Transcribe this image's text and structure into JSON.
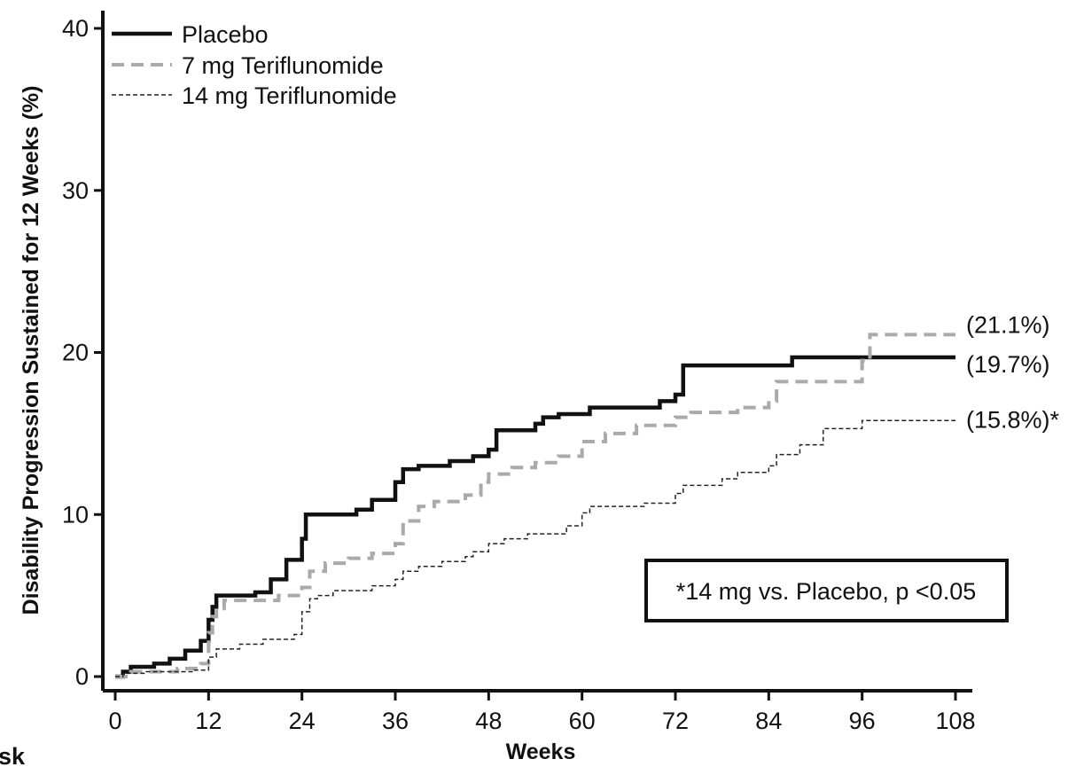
{
  "chart_data": {
    "type": "line",
    "step": true,
    "xlabel": "Weeks",
    "ylabel": "Disability Progression Sustained for 12 Weeks (%)",
    "xlim": [
      0,
      108
    ],
    "ylim": [
      0,
      40
    ],
    "xticks": [
      0,
      12,
      24,
      36,
      48,
      60,
      72,
      84,
      96,
      108
    ],
    "yticks": [
      0,
      10,
      20,
      30,
      40
    ],
    "legend_position": "top-left",
    "series": [
      {
        "name": "Placebo",
        "color": "#111111",
        "style": "solid-thick",
        "end_label": "(19.7%)",
        "points": [
          [
            0,
            0
          ],
          [
            1,
            0.3
          ],
          [
            2,
            0.6
          ],
          [
            5,
            0.8
          ],
          [
            7,
            1.1
          ],
          [
            9,
            1.6
          ],
          [
            11,
            2.2
          ],
          [
            12,
            3.5
          ],
          [
            12.5,
            4.3
          ],
          [
            13,
            5.0
          ],
          [
            18,
            5.2
          ],
          [
            20,
            6.0
          ],
          [
            22,
            7.2
          ],
          [
            24,
            8.5
          ],
          [
            24.5,
            10.0
          ],
          [
            31,
            10.3
          ],
          [
            33,
            10.9
          ],
          [
            36,
            12.0
          ],
          [
            37,
            12.8
          ],
          [
            39,
            13.0
          ],
          [
            43,
            13.3
          ],
          [
            46,
            13.6
          ],
          [
            48,
            14.0
          ],
          [
            49,
            15.2
          ],
          [
            54,
            15.6
          ],
          [
            55,
            16.0
          ],
          [
            57,
            16.2
          ],
          [
            61,
            16.6
          ],
          [
            70,
            17.0
          ],
          [
            72,
            17.4
          ],
          [
            73,
            19.2
          ],
          [
            87,
            19.7
          ],
          [
            108,
            19.7
          ]
        ]
      },
      {
        "name": "7 mg Teriflunomide",
        "color": "#aaaaaa",
        "style": "dashed-thick",
        "end_label": "(21.1%)",
        "points": [
          [
            0,
            0
          ],
          [
            2,
            0.3
          ],
          [
            8,
            0.5
          ],
          [
            11,
            0.8
          ],
          [
            12,
            2.7
          ],
          [
            12.5,
            3.7
          ],
          [
            13,
            4.2
          ],
          [
            14,
            4.7
          ],
          [
            21,
            5.0
          ],
          [
            24,
            5.5
          ],
          [
            25,
            6.5
          ],
          [
            27,
            7.0
          ],
          [
            30,
            7.3
          ],
          [
            33,
            7.6
          ],
          [
            36,
            8.2
          ],
          [
            37,
            9.6
          ],
          [
            39,
            10.5
          ],
          [
            41,
            10.8
          ],
          [
            45,
            11.2
          ],
          [
            47,
            12.0
          ],
          [
            48,
            12.5
          ],
          [
            51,
            12.9
          ],
          [
            54,
            13.2
          ],
          [
            57,
            13.6
          ],
          [
            60,
            14.5
          ],
          [
            63,
            15.0
          ],
          [
            67,
            15.5
          ],
          [
            72,
            16.0
          ],
          [
            74,
            16.3
          ],
          [
            80,
            16.6
          ],
          [
            84,
            17.0
          ],
          [
            85,
            18.2
          ],
          [
            96,
            19.5
          ],
          [
            97,
            21.1
          ],
          [
            108,
            21.1
          ]
        ]
      },
      {
        "name": "14 mg Teriflunomide",
        "color": "#222222",
        "style": "dashed-thin",
        "end_label": "(15.8%)*",
        "points": [
          [
            0,
            0
          ],
          [
            1,
            0.2
          ],
          [
            4,
            0.3
          ],
          [
            10,
            0.4
          ],
          [
            12,
            1.2
          ],
          [
            13,
            1.7
          ],
          [
            16,
            2.0
          ],
          [
            19,
            2.3
          ],
          [
            23,
            2.6
          ],
          [
            24,
            4.0
          ],
          [
            25,
            4.8
          ],
          [
            26,
            5.0
          ],
          [
            28,
            5.3
          ],
          [
            33,
            5.6
          ],
          [
            36,
            6.0
          ],
          [
            37,
            6.5
          ],
          [
            39,
            6.8
          ],
          [
            42,
            7.1
          ],
          [
            45,
            7.4
          ],
          [
            46,
            7.7
          ],
          [
            48,
            8.2
          ],
          [
            50,
            8.5
          ],
          [
            53,
            8.8
          ],
          [
            58,
            9.3
          ],
          [
            60,
            10.1
          ],
          [
            61,
            10.5
          ],
          [
            68,
            10.7
          ],
          [
            72,
            11.3
          ],
          [
            73,
            11.8
          ],
          [
            78,
            12.2
          ],
          [
            80,
            12.6
          ],
          [
            84,
            13.0
          ],
          [
            85,
            13.7
          ],
          [
            88,
            14.3
          ],
          [
            91,
            15.3
          ],
          [
            96,
            15.8
          ],
          [
            108,
            15.8
          ]
        ]
      }
    ],
    "tick_labels_x": [
      "0",
      "12",
      "24",
      "36",
      "48",
      "60",
      "72",
      "84",
      "96",
      "108"
    ],
    "tick_labels_y": [
      "0",
      "10",
      "20",
      "30",
      "40"
    ],
    "annotation": "*14 mg vs. Placebo, p <0.05"
  },
  "cut_text": "sk"
}
